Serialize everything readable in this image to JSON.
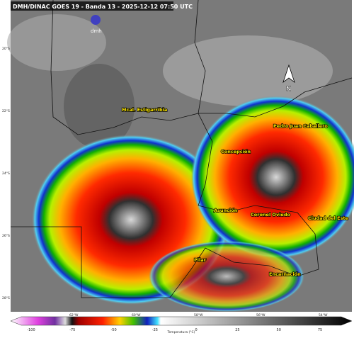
{
  "header": {
    "title": "DMH/DINAC GOES 19 - Banda 13 - 2025-12-12 07:50 UTC",
    "logo": "dmh"
  },
  "cities": [
    "Mcal. Estigarribia",
    "Pedro Juan Caballero",
    "Concepción",
    "Asunción",
    "Coronel Oviedo",
    "Ciudad del Este",
    "Pilar",
    "Encarnación"
  ],
  "latitudes": [
    "20°S",
    "22°S",
    "24°S",
    "26°S",
    "28°S"
  ],
  "longitudes": [
    "62°W",
    "60°W",
    "58°W",
    "56°W",
    "54°W"
  ],
  "colorbar": {
    "ticks": [
      "-100",
      "-75",
      "-50",
      "-25",
      "0",
      "25",
      "50",
      "75"
    ],
    "label": "Temperatura (°C)"
  }
}
